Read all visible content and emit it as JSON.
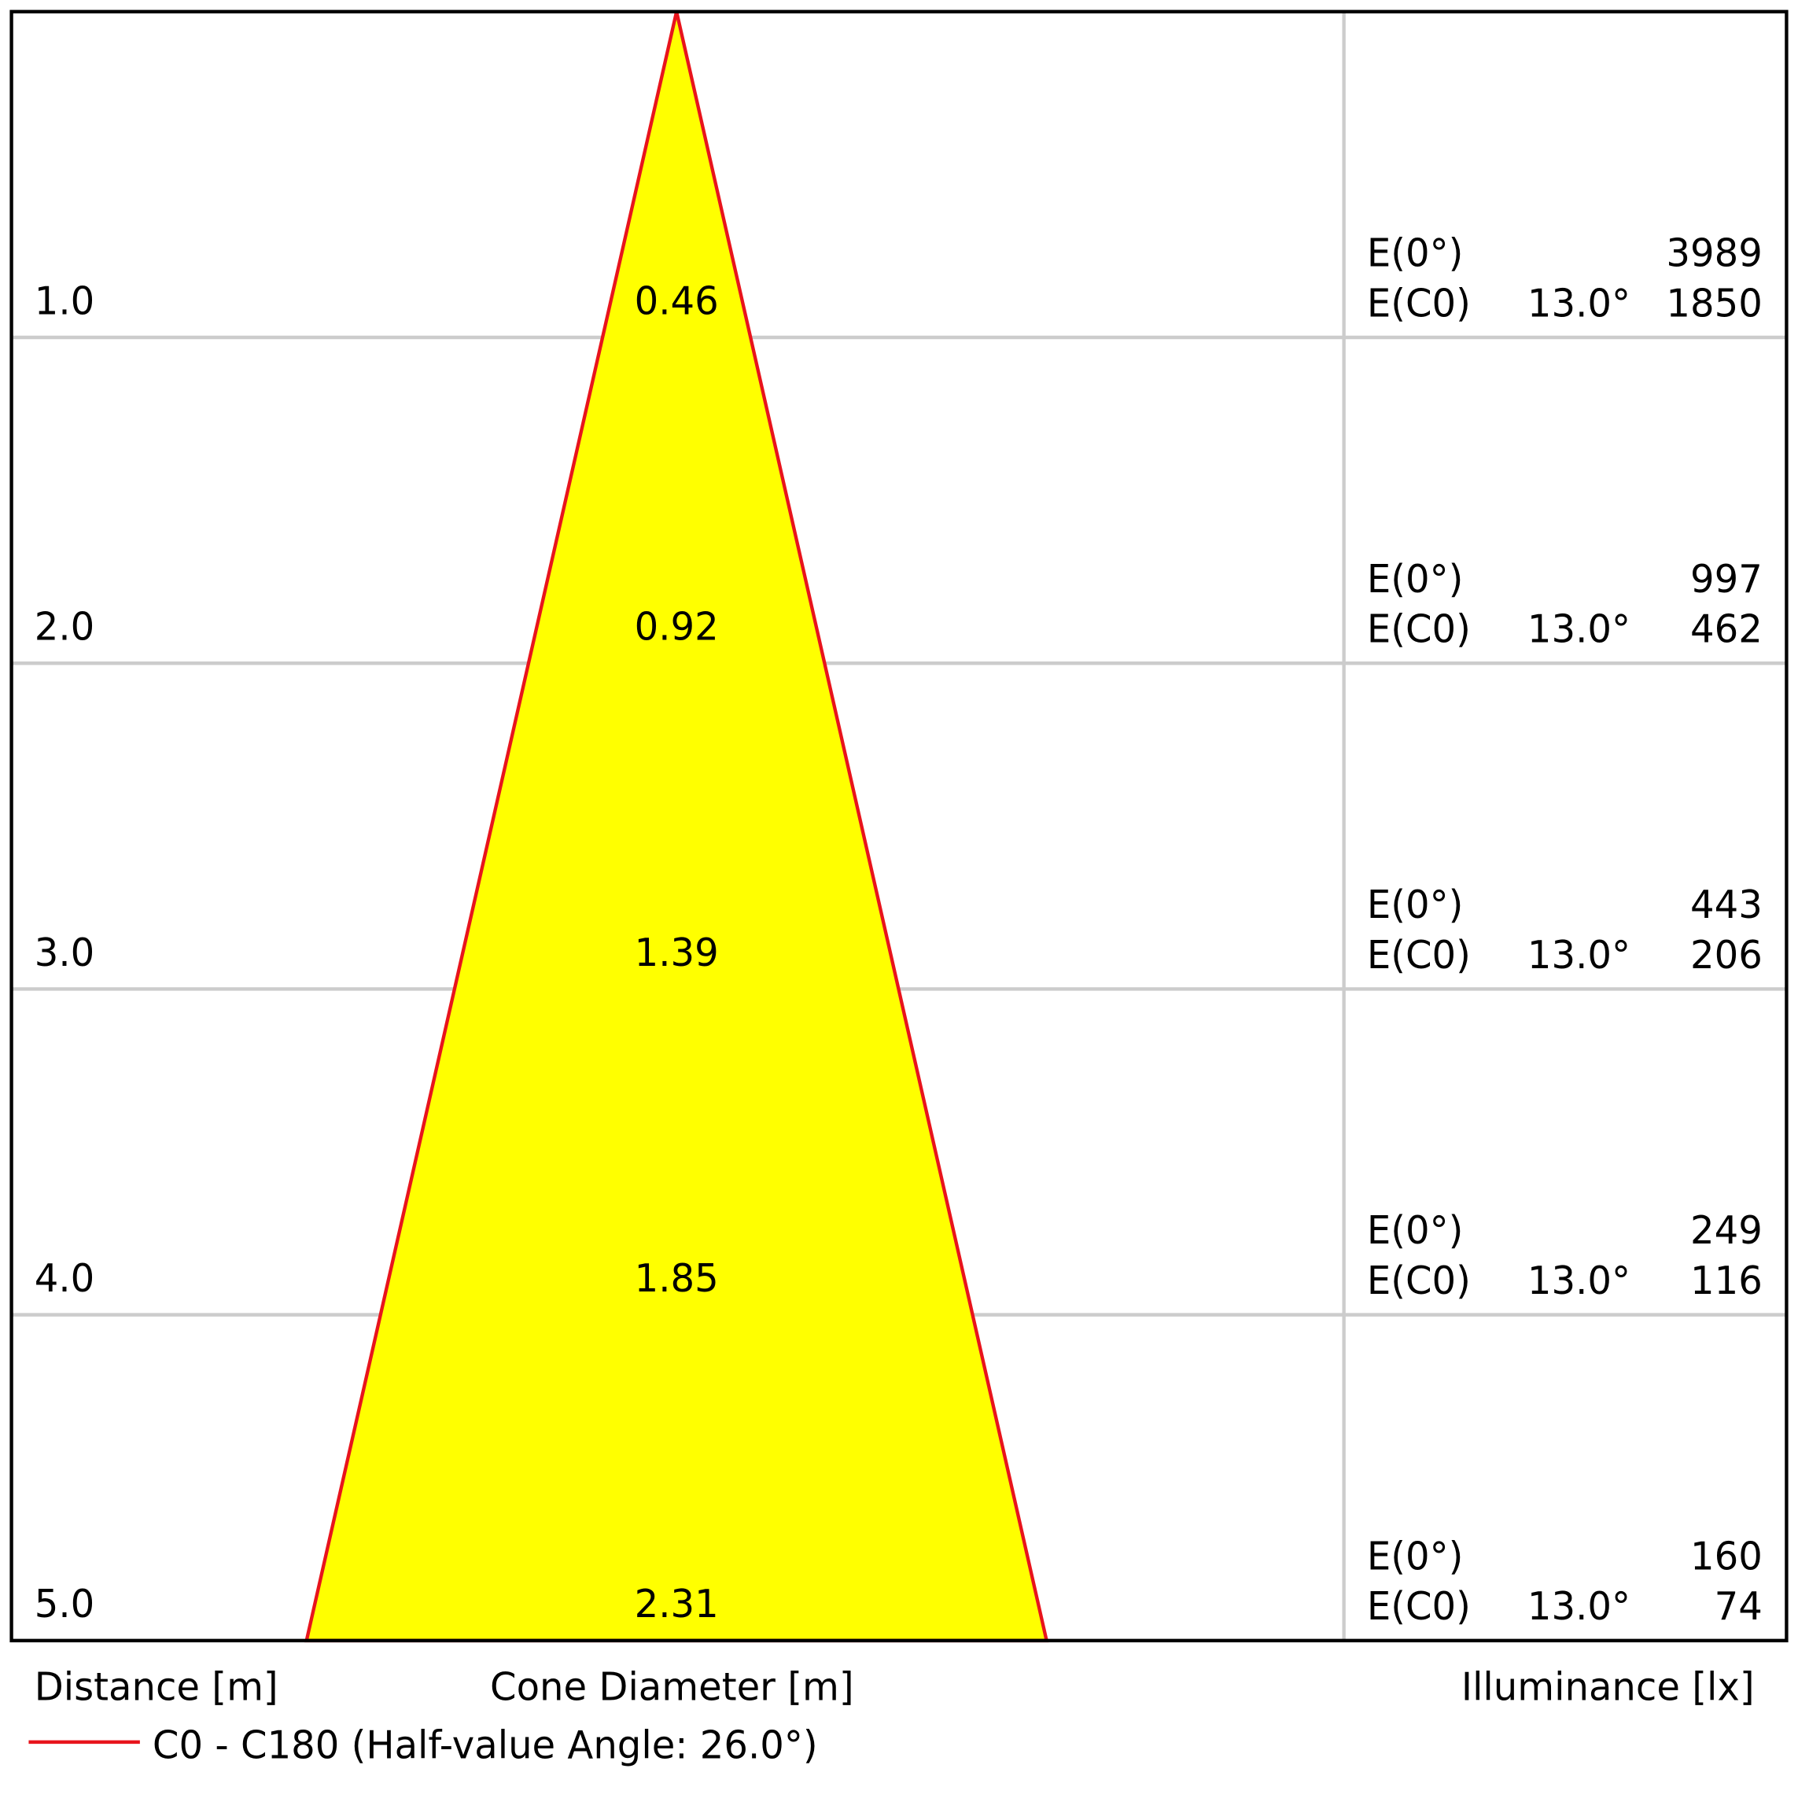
{
  "chart_data": {
    "type": "cone",
    "y_label": "Distance [m]",
    "x_label": "Cone Diameter [m]",
    "right_label": "Illuminance [lx]",
    "legend": {
      "name": "C0 - C180 (Half-value Angle: 26.0°)",
      "color": "#e8141c"
    },
    "fill": "#ffff00",
    "ylim": [
      0,
      5
    ],
    "distances": [
      {
        "value": 1,
        "label": "1.0"
      },
      {
        "value": 2,
        "label": "2.0"
      },
      {
        "value": 3,
        "label": "3.0"
      },
      {
        "value": 4,
        "label": "4.0"
      },
      {
        "value": 5,
        "label": "5.0"
      }
    ],
    "diameters": [
      0.46,
      0.92,
      1.39,
      1.85,
      2.31
    ],
    "e0_label": "E(0°)",
    "ec0_label": "E(C0)",
    "angle_label": "13.0°",
    "e0": [
      3989,
      997,
      443,
      249,
      160
    ],
    "ec0": [
      1850,
      462,
      206,
      116,
      74
    ]
  }
}
